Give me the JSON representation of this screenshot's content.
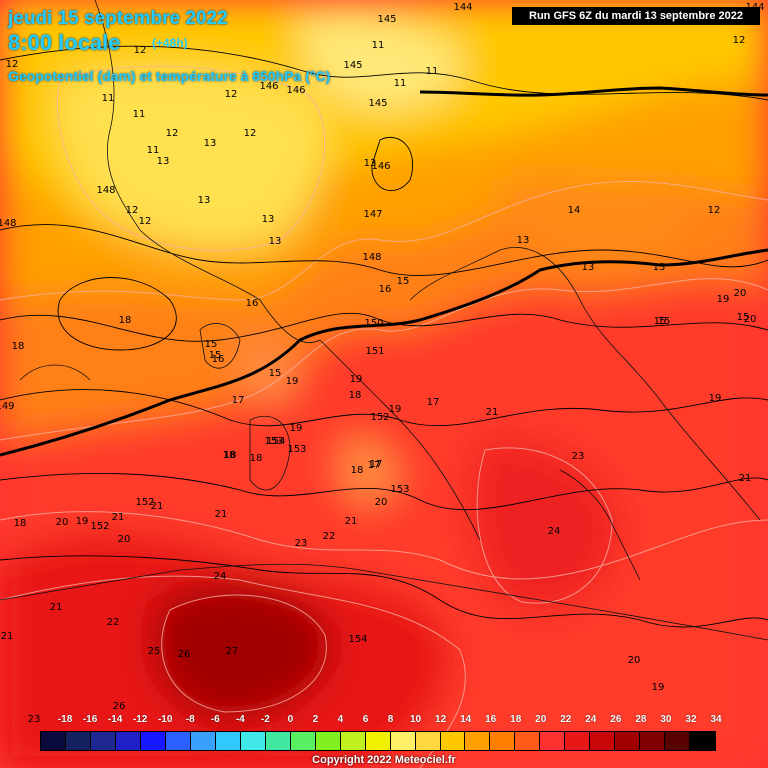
{
  "header": {
    "date": "jeudi 15 septembre 2022",
    "time": "8:00 locale",
    "lead": "(+48h)",
    "parameter": "Geopotentiel (dam) et température à 850hPa (°C)",
    "run": "Run GFS 6Z du mardi 13 septembre 2022"
  },
  "scale": {
    "labels": [
      "-18",
      "-16",
      "-14",
      "-12",
      "-10",
      "-8",
      "-6",
      "-4",
      "-2",
      "0",
      "2",
      "4",
      "6",
      "8",
      "10",
      "12",
      "14",
      "16",
      "18",
      "20",
      "22",
      "24",
      "26",
      "28",
      "30",
      "32",
      "34"
    ],
    "colors": [
      "#0a0a3c",
      "#142060",
      "#1e2890",
      "#2020c8",
      "#1818ff",
      "#2a60ff",
      "#3aa0ff",
      "#30c8ff",
      "#40e8e8",
      "#40e8a0",
      "#58f060",
      "#80f020",
      "#c0f020",
      "#f0f000",
      "#fff068",
      "#ffd840",
      "#ffc800",
      "#ffa000",
      "#ff8000",
      "#ff5a18",
      "#ff3030",
      "#e81818",
      "#c80808",
      "#a00000",
      "#800000",
      "#580000",
      "#000000"
    ]
  },
  "map": {
    "temperature_labels": [
      {
        "v": "12"
      },
      {
        "v": "11"
      },
      {
        "v": "12"
      },
      {
        "v": "11"
      },
      {
        "v": "11"
      },
      {
        "v": "12"
      },
      {
        "v": "12"
      },
      {
        "v": "13"
      },
      {
        "v": "12"
      },
      {
        "v": "13"
      },
      {
        "v": "11"
      },
      {
        "v": "12"
      },
      {
        "v": "11"
      },
      {
        "v": "13"
      },
      {
        "v": "12"
      },
      {
        "v": "12"
      },
      {
        "v": "13"
      },
      {
        "v": "13"
      },
      {
        "v": "11"
      },
      {
        "v": "13"
      },
      {
        "v": "14"
      },
      {
        "v": "12"
      },
      {
        "v": "13"
      },
      {
        "v": "13"
      },
      {
        "v": "13"
      },
      {
        "v": "15"
      },
      {
        "v": "18"
      },
      {
        "v": "16"
      },
      {
        "v": "18"
      },
      {
        "v": "15"
      },
      {
        "v": "15"
      },
      {
        "v": "16"
      },
      {
        "v": "15"
      },
      {
        "v": "15"
      },
      {
        "v": "19"
      },
      {
        "v": "20"
      },
      {
        "v": "15"
      },
      {
        "v": "20"
      },
      {
        "v": "18"
      },
      {
        "v": "16"
      },
      {
        "v": "15"
      },
      {
        "v": "19"
      },
      {
        "v": "19"
      },
      {
        "v": "17"
      },
      {
        "v": "19"
      },
      {
        "v": "18"
      },
      {
        "v": "19"
      },
      {
        "v": "17"
      },
      {
        "v": "21"
      },
      {
        "v": "19"
      },
      {
        "v": "17"
      },
      {
        "v": "18"
      },
      {
        "v": "18"
      },
      {
        "v": "18"
      },
      {
        "v": "17"
      },
      {
        "v": "23"
      },
      {
        "v": "21"
      },
      {
        "v": "20"
      },
      {
        "v": "21"
      },
      {
        "v": "21"
      },
      {
        "v": "18"
      },
      {
        "v": "20"
      },
      {
        "v": "19"
      },
      {
        "v": "21"
      },
      {
        "v": "20"
      },
      {
        "v": "21"
      },
      {
        "v": "22"
      },
      {
        "v": "24"
      },
      {
        "v": "23"
      },
      {
        "v": "24"
      },
      {
        "v": "21"
      },
      {
        "v": "22"
      },
      {
        "v": "25"
      },
      {
        "v": "26"
      },
      {
        "v": "27"
      },
      {
        "v": "21"
      },
      {
        "v": "26"
      },
      {
        "v": "20"
      },
      {
        "v": "19"
      },
      {
        "v": "23"
      }
    ],
    "geopotential_labels": [
      {
        "v": "145"
      },
      {
        "v": "146"
      },
      {
        "v": "145"
      },
      {
        "v": "145"
      },
      {
        "v": "146"
      },
      {
        "v": "148"
      },
      {
        "v": "146"
      },
      {
        "v": "147"
      },
      {
        "v": "148"
      },
      {
        "v": "148"
      },
      {
        "v": "150"
      },
      {
        "v": "151"
      },
      {
        "v": "152"
      },
      {
        "v": "153"
      },
      {
        "v": "153"
      },
      {
        "v": "152"
      },
      {
        "v": "154"
      },
      {
        "v": "153"
      },
      {
        "v": "152"
      },
      {
        "v": "154"
      },
      {
        "v": "144"
      },
      {
        "v": "144"
      },
      {
        "v": "149"
      }
    ]
  },
  "copyright": "Copyright 2022 Meteociel.fr"
}
